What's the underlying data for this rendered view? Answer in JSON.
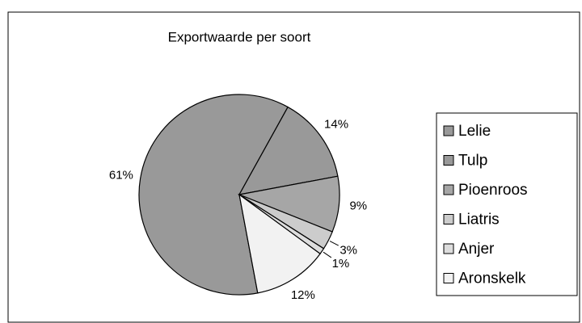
{
  "chart_data": {
    "type": "pie",
    "title": "Exportwaarde per soort",
    "categories": [
      "Lelie",
      "Tulp",
      "Pioenroos",
      "Liatris",
      "Anjer",
      "Aronskelk"
    ],
    "values": [
      61,
      14,
      9,
      3,
      1,
      12
    ],
    "value_labels": [
      "61%",
      "14%",
      "9%",
      "3%",
      "1%",
      "12%"
    ],
    "colors": [
      "#999999",
      "#999999",
      "#a6a6a6",
      "#cccccc",
      "#dddddd",
      "#f2f2f2"
    ],
    "legend": "right"
  }
}
